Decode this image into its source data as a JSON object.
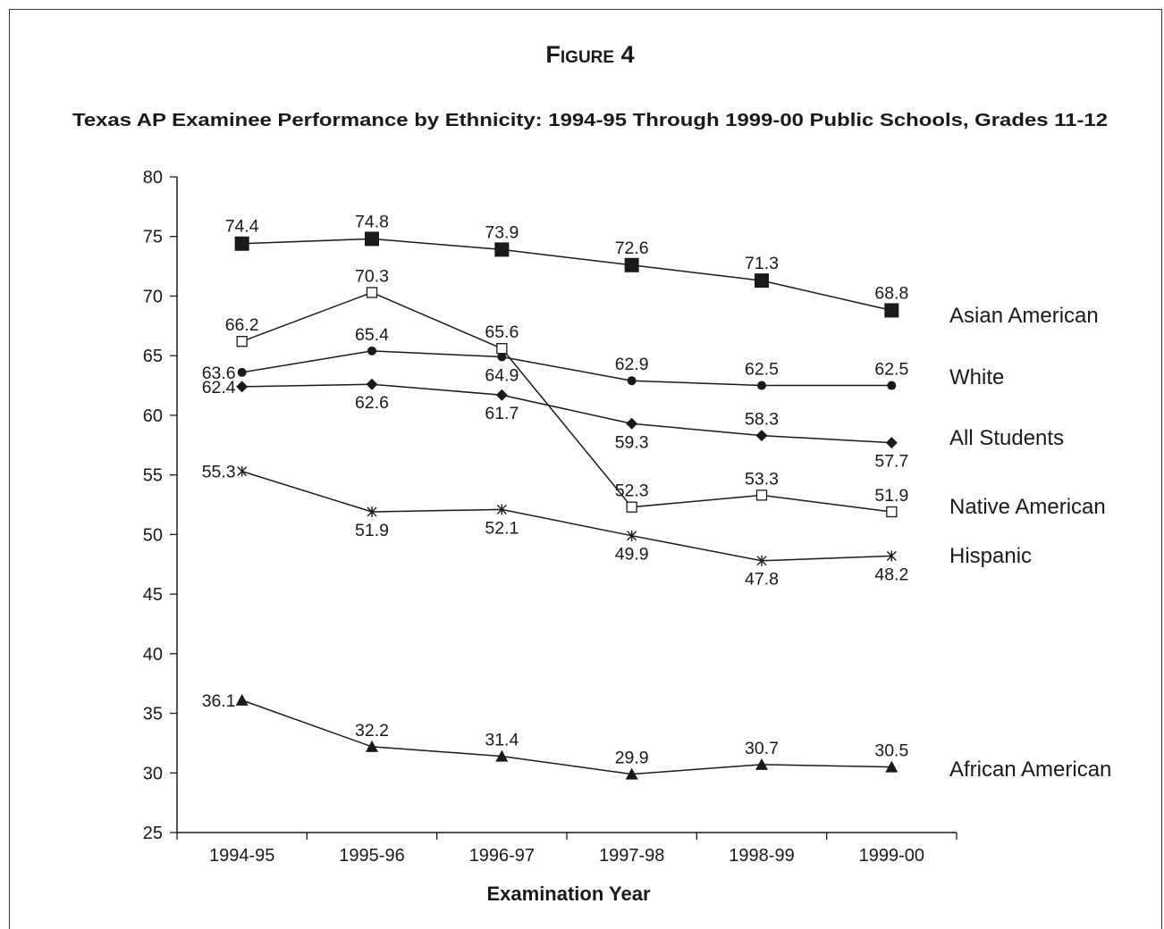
{
  "figure_label": "Figure 4",
  "chart_data": {
    "type": "line",
    "title": "Texas AP Examinee Performance by Ethnicity: 1994-95 Through 1999-00 Public Schools, Grades 11-12",
    "xlabel": "Examination Year",
    "ylabel": "",
    "categories": [
      "1994-95",
      "1995-96",
      "1996-97",
      "1997-98",
      "1998-99",
      "1999-00"
    ],
    "ylim": [
      25,
      80
    ],
    "yticks": [
      "25",
      "30",
      "35",
      "40",
      "45",
      "50",
      "55",
      "60",
      "65",
      "70",
      "75",
      "80"
    ],
    "grid": false,
    "legend": "right",
    "series": [
      {
        "name": "Asian American",
        "marker": "filled-square",
        "values": [
          74.4,
          74.8,
          73.9,
          72.6,
          71.3,
          68.8
        ],
        "labels": [
          "74.4",
          "74.8",
          "73.9",
          "72.6",
          "71.3",
          "68.8"
        ]
      },
      {
        "name": "White",
        "marker": "filled-circle",
        "values": [
          63.6,
          65.4,
          64.9,
          62.9,
          62.5,
          62.5
        ],
        "labels": [
          "63.6",
          "65.4",
          "64.9",
          "62.9",
          "62.5",
          "62.5"
        ]
      },
      {
        "name": "All Students",
        "marker": "filled-diamond",
        "values": [
          62.4,
          62.6,
          61.7,
          59.3,
          58.3,
          57.7
        ],
        "labels": [
          "62.4",
          "62.6",
          "61.7",
          "59.3",
          "58.3",
          "57.7"
        ]
      },
      {
        "name": "Native American",
        "marker": "open-square",
        "values": [
          66.2,
          70.3,
          65.6,
          52.3,
          53.3,
          51.9
        ],
        "labels": [
          "66.2",
          "70.3",
          "65.6",
          "52.3",
          "53.3",
          "51.9"
        ]
      },
      {
        "name": "Hispanic",
        "marker": "asterisk",
        "values": [
          55.3,
          51.9,
          52.1,
          49.9,
          47.8,
          48.2
        ],
        "labels": [
          "55.3",
          "51.9",
          "52.1",
          "49.9",
          "47.8",
          "48.2"
        ]
      },
      {
        "name": "African American",
        "marker": "filled-triangle",
        "values": [
          36.1,
          32.2,
          31.4,
          29.9,
          30.7,
          30.5
        ],
        "labels": [
          "36.1",
          "32.2",
          "31.4",
          "29.9",
          "30.7",
          "30.5"
        ]
      }
    ],
    "colors": {
      "line": "#1a1a1a",
      "marker": "#1a1a1a",
      "text": "#1a1a1a"
    }
  }
}
